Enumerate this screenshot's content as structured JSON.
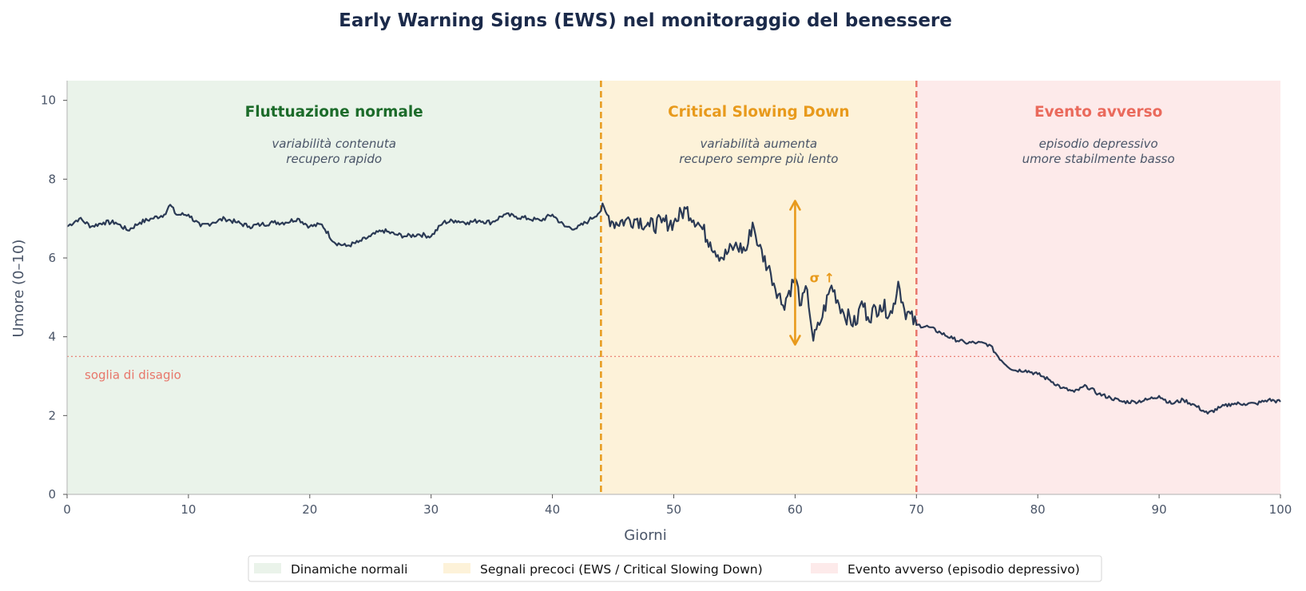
{
  "chart_data": {
    "type": "line",
    "title": "Early Warning Signs (EWS) nel monitoraggio del benessere",
    "xlabel": "Giorni",
    "ylabel": "Umore (0–10)",
    "xlim": [
      0,
      100
    ],
    "ylim": [
      0,
      10.5
    ],
    "xticks": [
      0,
      10,
      20,
      30,
      40,
      50,
      60,
      70,
      80,
      90,
      100
    ],
    "yticks": [
      0,
      2,
      4,
      6,
      8,
      10
    ],
    "grid": false,
    "series": [
      {
        "color": "#2b3a55",
        "x": [
          0,
          1,
          2,
          3,
          4,
          5,
          6,
          7,
          8,
          8.5,
          9,
          10,
          11,
          12,
          13,
          14,
          15,
          16,
          17,
          18,
          19,
          20,
          21,
          22,
          23,
          24,
          25,
          26,
          27,
          28,
          29,
          30,
          31,
          32,
          33,
          34,
          35,
          36,
          37,
          38,
          39,
          40,
          41,
          42,
          43,
          44,
          44.5,
          45,
          46,
          47,
          48,
          49,
          50,
          51,
          52,
          53,
          54,
          55,
          56,
          56.5,
          57,
          58,
          59,
          60,
          60.5,
          61,
          61.5,
          62,
          63,
          64,
          65,
          65.5,
          66,
          67,
          68,
          68.5,
          69,
          70,
          71,
          72,
          73,
          74,
          75,
          76,
          77,
          78,
          79,
          80,
          81,
          82,
          83,
          84,
          85,
          86,
          87,
          88,
          89,
          90,
          91,
          92,
          93,
          94,
          95,
          96,
          97,
          98,
          99,
          100
        ],
        "values": [
          6.8,
          7.0,
          6.8,
          6.9,
          6.9,
          6.7,
          6.9,
          7.0,
          7.1,
          7.35,
          7.1,
          7.1,
          6.8,
          6.9,
          7.0,
          6.9,
          6.8,
          6.85,
          6.9,
          6.9,
          7.0,
          6.8,
          6.85,
          6.4,
          6.3,
          6.4,
          6.55,
          6.7,
          6.6,
          6.55,
          6.6,
          6.55,
          6.9,
          6.95,
          6.9,
          6.95,
          6.9,
          7.1,
          7.05,
          7.0,
          6.95,
          7.1,
          6.8,
          6.75,
          6.95,
          7.2,
          7.1,
          6.9,
          6.95,
          7.0,
          6.8,
          6.9,
          6.9,
          7.25,
          6.9,
          6.4,
          6.0,
          6.3,
          6.2,
          6.9,
          6.3,
          5.6,
          4.8,
          5.5,
          4.8,
          5.2,
          3.9,
          4.3,
          5.3,
          4.6,
          4.3,
          4.9,
          4.5,
          4.8,
          4.6,
          5.4,
          4.7,
          4.3,
          4.25,
          4.1,
          3.95,
          3.85,
          3.85,
          3.8,
          3.4,
          3.15,
          3.15,
          3.05,
          2.9,
          2.7,
          2.6,
          2.75,
          2.55,
          2.45,
          2.35,
          2.35,
          2.4,
          2.5,
          2.3,
          2.4,
          2.25,
          2.05,
          2.2,
          2.3,
          2.3,
          2.3,
          2.4,
          2.35
        ]
      }
    ],
    "regions": [
      {
        "x_start": 0,
        "x_end": 44,
        "fill": "#eaf3ea",
        "title": "Fluttuazione normale",
        "title_color": "#1c6b2a",
        "subtitle": [
          "variabilità contenuta",
          "recupero rapido"
        ]
      },
      {
        "x_start": 44,
        "x_end": 70,
        "fill": "#fdf2d9",
        "title": "Critical Slowing Down",
        "title_color": "#e89a1c",
        "subtitle": [
          "variabilità aumenta",
          "recupero sempre più lento"
        ]
      },
      {
        "x_start": 70,
        "x_end": 100,
        "fill": "#fdeaea",
        "title": "Evento avverso",
        "title_color": "#ea6a5c",
        "subtitle": [
          "episodio depressivo",
          "umore stabilmente basso"
        ]
      }
    ],
    "vlines": [
      {
        "x": 44,
        "color": "#e89a1c",
        "style": "dashed"
      },
      {
        "x": 70,
        "color": "#e8766a",
        "style": "dashed"
      }
    ],
    "threshold": {
      "y": 3.5,
      "label": "soglia di disagio",
      "color": "#e8766a"
    },
    "sigma_arrow": {
      "x": 60,
      "y_start": 3.8,
      "y_end": 7.45,
      "label": "σ ↑",
      "label_x": 61.2,
      "label_y": 5.5,
      "color": "#e89a1c"
    },
    "legend": {
      "placement": "bottom-center",
      "entries": [
        {
          "label": "Dinamiche normali",
          "color": "#eaf3ea"
        },
        {
          "label": "Segnali precoci (EWS / Critical Slowing Down)",
          "color": "#fdf2d9"
        },
        {
          "label": "Evento avverso (episodio depressivo)",
          "color": "#fdeaea"
        }
      ]
    }
  }
}
